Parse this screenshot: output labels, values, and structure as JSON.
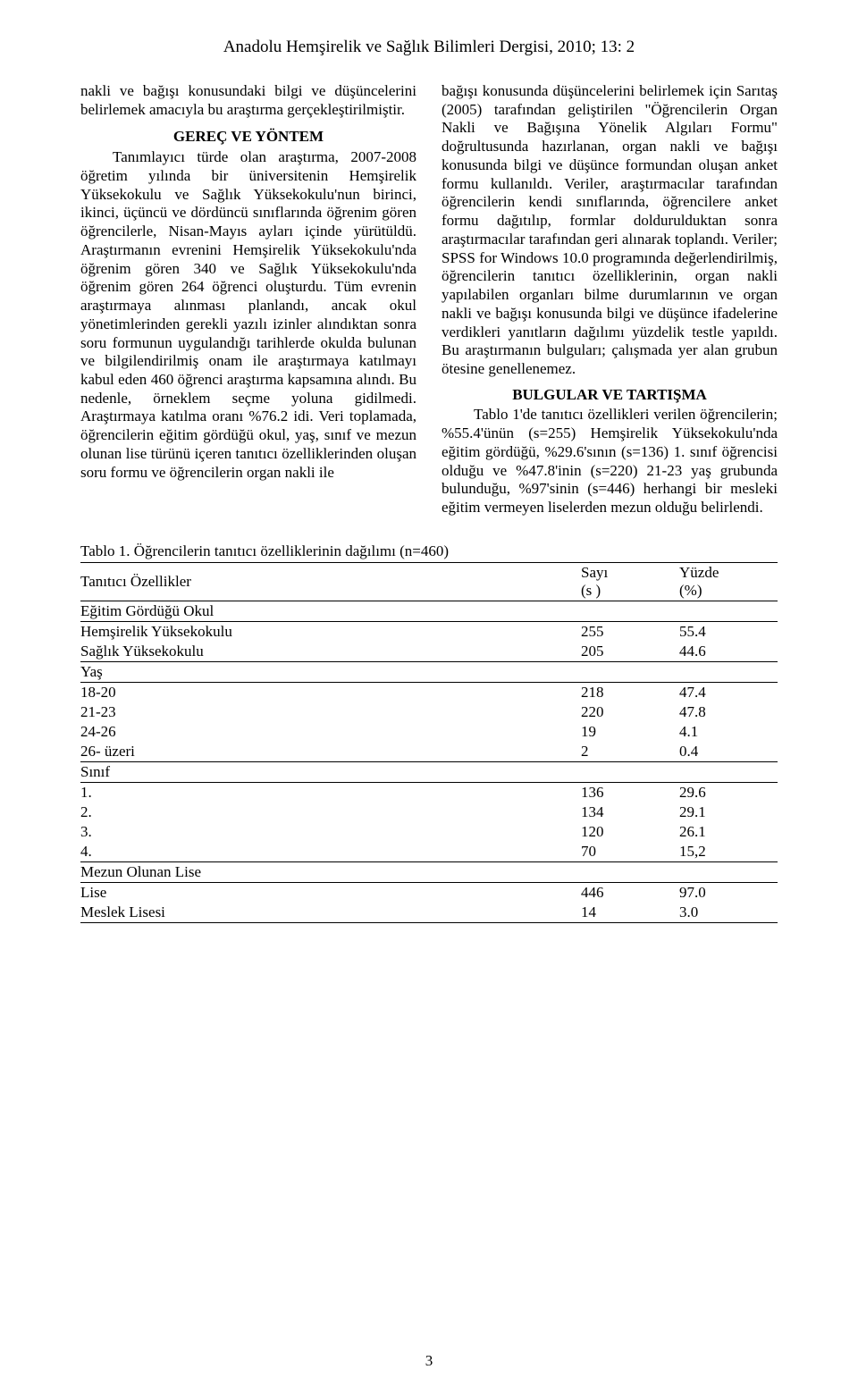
{
  "journal_header": "Anadolu Hemşirelik ve Sağlık Bilimleri Dergisi, 2010; 13: 2",
  "page_number": "3",
  "left_column": {
    "intro": "nakli ve bağışı konusundaki bilgi ve düşüncelerini belirlemek amacıyla bu araştırma gerçekleştirilmiştir.",
    "section_title": "GEREÇ VE YÖNTEM",
    "body": "Tanımlayıcı türde olan araştırma, 2007-2008 öğretim yılında bir üniversitenin Hemşirelik Yüksekokulu ve Sağlık Yüksekokulu'nun birinci, ikinci, üçüncü ve dördüncü sınıflarında öğrenim gören öğrencilerle, Nisan-Mayıs ayları içinde yürütüldü. Araştırmanın evrenini Hemşirelik Yüksekokulu'nda öğrenim gören 340 ve Sağlık Yüksekokulu'nda öğrenim gören 264 öğrenci oluşturdu. Tüm evrenin araştırmaya alınması planlandı, ancak okul yönetimlerinden gerekli yazılı izinler alındıktan sonra soru formunun uygulandığı tarihlerde okulda bulunan ve bilgilendirilmiş onam ile araştırmaya katılmayı kabul eden 460 öğrenci araştırma kapsamına alındı. Bu nedenle, örneklem seçme yoluna gidilmedi. Araştırmaya katılma oranı %76.2 idi. Veri toplamada, öğrencilerin eğitim gördüğü okul, yaş, sınıf ve mezun olunan lise türünü içeren tanıtıcı özelliklerinden oluşan soru formu ve öğrencilerin organ nakli ile"
  },
  "right_column": {
    "body": "bağışı konusunda düşüncelerini belirlemek için Sarıtaş (2005) tarafından geliştirilen \"Öğrencilerin Organ Nakli ve Bağışına Yönelik Algıları Formu\" doğrultusunda hazırlanan, organ nakli ve bağışı konusunda bilgi ve düşünce formundan oluşan anket formu kullanıldı. Veriler, araştırmacılar tarafından öğrencilerin kendi sınıflarında, öğrencilere anket formu dağıtılıp, formlar doldurulduktan sonra araştırmacılar tarafından geri alınarak toplandı. Veriler; SPSS for Windows 10.0 programında değerlendirilmiş, öğrencilerin tanıtıcı özelliklerinin, organ nakli yapılabilen organları bilme durumlarının ve organ nakli ve bağışı konusunda bilgi ve düşünce ifadelerine verdikleri yanıtların dağılımı yüzdelik testle yapıldı. Bu araştırmanın bulguları; çalışmada yer alan grubun ötesine genellenemez.",
    "section_title": "BULGULAR VE TARTIŞMA",
    "body2": "Tablo 1'de tanıtıcı özellikleri verilen öğrencilerin; %55.4'ünün (s=255) Hemşirelik Yüksekokulu'nda eğitim gördüğü, %29.6'sının (s=136) 1. sınıf öğrencisi olduğu ve %47.8'inin (s=220) 21-23 yaş grubunda bulunduğu, %97'sinin (s=446) herhangi bir mesleki eğitim vermeyen liselerden mezun olduğu belirlendi."
  },
  "table": {
    "caption": "Tablo 1. Öğrencilerin tanıtıcı özelliklerinin dağılımı (n=460)",
    "header_label": "Tanıtıcı Özellikler",
    "header_sayi": "Sayı",
    "header_sayi_sub": "(s )",
    "header_yuzde": "Yüzde",
    "header_yuzde_sub": "(%)",
    "sections": [
      {
        "title": "Eğitim Gördüğü Okul",
        "rows": [
          {
            "label": "Hemşirelik Yüksekokulu",
            "sayi": "255",
            "yuzde": "55.4"
          },
          {
            "label": "Sağlık Yüksekokulu",
            "sayi": "205",
            "yuzde": "44.6"
          }
        ]
      },
      {
        "title": "Yaş",
        "rows": [
          {
            "label": "18-20",
            "sayi": "218",
            "yuzde": "47.4"
          },
          {
            "label": "21-23",
            "sayi": "220",
            "yuzde": "47.8"
          },
          {
            "label": "24-26",
            "sayi": "19",
            "yuzde": "4.1"
          },
          {
            "label": "26- üzeri",
            "sayi": "2",
            "yuzde": "0.4"
          }
        ]
      },
      {
        "title": "Sınıf",
        "rows": [
          {
            "label": "1.",
            "sayi": "136",
            "yuzde": "29.6"
          },
          {
            "label": "2.",
            "sayi": "134",
            "yuzde": "29.1"
          },
          {
            "label": "3.",
            "sayi": "120",
            "yuzde": "26.1"
          },
          {
            "label": "4.",
            "sayi": "70",
            "yuzde": "15,2"
          }
        ]
      },
      {
        "title": "Mezun Olunan Lise",
        "rows": [
          {
            "label": "Lise",
            "sayi": "446",
            "yuzde": "97.0"
          },
          {
            "label": "Meslek Lisesi",
            "sayi": "14",
            "yuzde": "3.0"
          }
        ]
      }
    ]
  }
}
